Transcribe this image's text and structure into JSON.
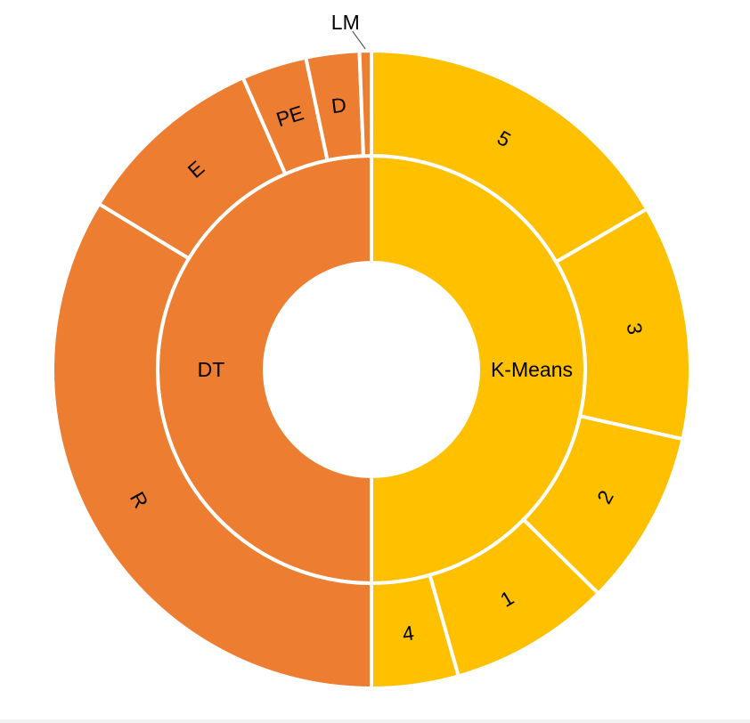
{
  "chart_data": {
    "type": "sunburst",
    "title": "",
    "inner_ring": [
      {
        "label": "K-Means",
        "value": 50,
        "color": "#FFC000"
      },
      {
        "label": "DT",
        "value": 50,
        "color": "#ED7D31"
      }
    ],
    "outer_ring": [
      {
        "parent": "K-Means",
        "label": "5",
        "value": 16.6,
        "color": "#FFC000"
      },
      {
        "parent": "K-Means",
        "label": "3",
        "value": 11.9,
        "color": "#FFC000"
      },
      {
        "parent": "K-Means",
        "label": "2",
        "value": 8.9,
        "color": "#FFC000"
      },
      {
        "parent": "K-Means",
        "label": "1",
        "value": 8.2,
        "color": "#FFC000"
      },
      {
        "parent": "K-Means",
        "label": "4",
        "value": 4.4,
        "color": "#FFC000"
      },
      {
        "parent": "DT",
        "label": "R",
        "value": 33.7,
        "color": "#ED7D31"
      },
      {
        "parent": "DT",
        "label": "E",
        "value": 9.7,
        "color": "#ED7D31"
      },
      {
        "parent": "DT",
        "label": "PE",
        "value": 3.3,
        "color": "#ED7D31"
      },
      {
        "parent": "DT",
        "label": "D",
        "value": 2.7,
        "color": "#ED7D31"
      },
      {
        "parent": "DT",
        "label": "LM",
        "value": 0.6,
        "color": "#ED7D31"
      }
    ]
  }
}
